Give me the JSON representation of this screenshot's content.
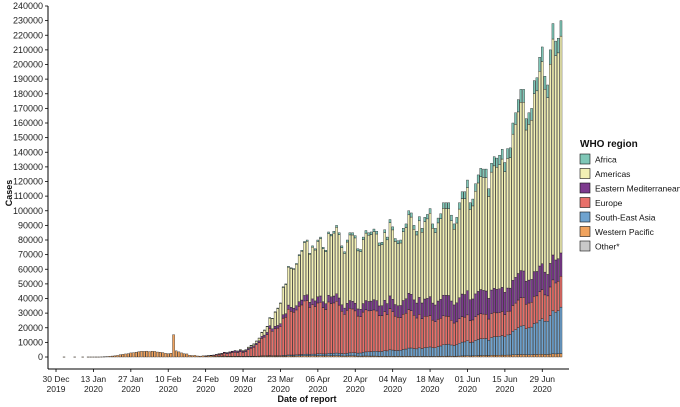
{
  "chart_data": {
    "type": "bar",
    "stacked": true,
    "xlabel": "Date of report",
    "ylabel": "Cases",
    "ylim": [
      0,
      240000
    ],
    "ytick_step": 10000,
    "x_ticks": [
      {
        "day": 0,
        "line1": "30 Dec",
        "line2": "2019"
      },
      {
        "day": 14,
        "line1": "13 Jan",
        "line2": "2020"
      },
      {
        "day": 28,
        "line1": "27 Jan",
        "line2": "2020"
      },
      {
        "day": 42,
        "line1": "10 Feb",
        "line2": "2020"
      },
      {
        "day": 56,
        "line1": "24 Feb",
        "line2": "2020"
      },
      {
        "day": 70,
        "line1": "09 Mar",
        "line2": "2020"
      },
      {
        "day": 84,
        "line1": "23 Mar",
        "line2": "2020"
      },
      {
        "day": 98,
        "line1": "06 Apr",
        "line2": "2020"
      },
      {
        "day": 112,
        "line1": "20 Apr",
        "line2": "2020"
      },
      {
        "day": 126,
        "line1": "04 May",
        "line2": "2020"
      },
      {
        "day": 140,
        "line1": "18 May",
        "line2": "2020"
      },
      {
        "day": 154,
        "line1": "01 Jun",
        "line2": "2020"
      },
      {
        "day": 168,
        "line1": "15 Jun",
        "line2": "2020"
      },
      {
        "day": 182,
        "line1": "29 Jun",
        "line2": "2020"
      }
    ],
    "x_start": "30 Dec 2019",
    "legend": {
      "title": "WHO region",
      "position": "right"
    },
    "series": [
      {
        "name": "Western Pacific",
        "color": "#f0a35e"
      },
      {
        "name": "South-East Asia",
        "color": "#6fa3cf"
      },
      {
        "name": "Europe",
        "color": "#e8706a"
      },
      {
        "name": "Eastern Mediterranean",
        "color": "#7d3a8e"
      },
      {
        "name": "Americas",
        "color": "#f2f0b4"
      },
      {
        "name": "Africa",
        "color": "#7fc7b7"
      },
      {
        "name": "Other*",
        "color": "#c8c8c8"
      }
    ],
    "legend_order": [
      "Africa",
      "Americas",
      "Eastern Mediterranean",
      "Europe",
      "South-East Asia",
      "Western Pacific",
      "Other*"
    ],
    "anchors": {
      "Western Pacific": [
        [
          0,
          0
        ],
        [
          3,
          50
        ],
        [
          14,
          100
        ],
        [
          20,
          300
        ],
        [
          24,
          1500
        ],
        [
          28,
          2000
        ],
        [
          32,
          2900
        ],
        [
          36,
          3700
        ],
        [
          39,
          3900
        ],
        [
          40,
          3400
        ],
        [
          41,
          2200
        ],
        [
          42,
          2000
        ],
        [
          43,
          2500
        ],
        [
          44,
          13000
        ],
        [
          45,
          2900
        ],
        [
          48,
          2200
        ],
        [
          52,
          900
        ],
        [
          56,
          500
        ],
        [
          70,
          400
        ],
        [
          84,
          700
        ],
        [
          98,
          900
        ],
        [
          112,
          700
        ],
        [
          126,
          500
        ],
        [
          140,
          400
        ],
        [
          154,
          800
        ],
        [
          168,
          1400
        ],
        [
          182,
          1700
        ],
        [
          189,
          2200
        ]
      ],
      "South-East Asia": [
        [
          0,
          0
        ],
        [
          60,
          0
        ],
        [
          70,
          50
        ],
        [
          84,
          500
        ],
        [
          98,
          1200
        ],
        [
          112,
          2000
        ],
        [
          126,
          4000
        ],
        [
          140,
          6000
        ],
        [
          154,
          10000
        ],
        [
          168,
          14000
        ],
        [
          182,
          22000
        ],
        [
          189,
          30000
        ]
      ],
      "Europe": [
        [
          0,
          0
        ],
        [
          55,
          0
        ],
        [
          58,
          200
        ],
        [
          62,
          900
        ],
        [
          66,
          2000
        ],
        [
          70,
          3000
        ],
        [
          74,
          8000
        ],
        [
          78,
          14000
        ],
        [
          82,
          22000
        ],
        [
          86,
          30000
        ],
        [
          90,
          33000
        ],
        [
          94,
          34000
        ],
        [
          98,
          33000
        ],
        [
          104,
          32000
        ],
        [
          112,
          27000
        ],
        [
          120,
          26000
        ],
        [
          126,
          25000
        ],
        [
          140,
          20000
        ],
        [
          154,
          17000
        ],
        [
          168,
          17000
        ],
        [
          182,
          18000
        ],
        [
          189,
          20000
        ]
      ],
      "Eastern Mediterranean": [
        [
          0,
          0
        ],
        [
          55,
          0
        ],
        [
          58,
          50
        ],
        [
          62,
          400
        ],
        [
          66,
          700
        ],
        [
          70,
          1000
        ],
        [
          78,
          1500
        ],
        [
          84,
          2500
        ],
        [
          98,
          4000
        ],
        [
          112,
          5000
        ],
        [
          126,
          8000
        ],
        [
          140,
          12000
        ],
        [
          154,
          16000
        ],
        [
          168,
          17000
        ],
        [
          182,
          16000
        ],
        [
          189,
          15000
        ]
      ],
      "Americas": [
        [
          0,
          0
        ],
        [
          60,
          0
        ],
        [
          66,
          50
        ],
        [
          70,
          500
        ],
        [
          76,
          2000
        ],
        [
          80,
          5000
        ],
        [
          84,
          18000
        ],
        [
          88,
          28000
        ],
        [
          92,
          33000
        ],
        [
          98,
          36000
        ],
        [
          104,
          40000
        ],
        [
          112,
          42000
        ],
        [
          120,
          43000
        ],
        [
          126,
          45000
        ],
        [
          134,
          47000
        ],
        [
          140,
          53000
        ],
        [
          147,
          58000
        ],
        [
          154,
          68000
        ],
        [
          161,
          80000
        ],
        [
          168,
          92000
        ],
        [
          175,
          105000
        ],
        [
          182,
          125000
        ],
        [
          189,
          140000
        ]
      ],
      "Africa": [
        [
          0,
          0
        ],
        [
          70,
          0
        ],
        [
          72,
          100
        ],
        [
          80,
          400
        ],
        [
          90,
          600
        ],
        [
          100,
          1000
        ],
        [
          112,
          1500
        ],
        [
          126,
          2000
        ],
        [
          140,
          3000
        ],
        [
          154,
          5000
        ],
        [
          168,
          7000
        ],
        [
          182,
          9000
        ],
        [
          189,
          10000
        ]
      ],
      "Other*": [
        [
          0,
          0
        ],
        [
          189,
          0
        ]
      ]
    },
    "daily_totals": [
      [
        0,
        0
      ],
      [
        3,
        60
      ],
      [
        4,
        0
      ],
      [
        7,
        60
      ],
      [
        8,
        0
      ],
      [
        9,
        0
      ],
      [
        10,
        60
      ],
      [
        12,
        60
      ],
      [
        13,
        60
      ],
      [
        14,
        60
      ],
      [
        15,
        60
      ],
      [
        16,
        60
      ],
      [
        17,
        100
      ],
      [
        18,
        150
      ],
      [
        19,
        300
      ],
      [
        20,
        450
      ],
      [
        21,
        650
      ],
      [
        22,
        800
      ],
      [
        23,
        1100
      ],
      [
        24,
        1500
      ],
      [
        25,
        1800
      ],
      [
        26,
        2100
      ],
      [
        27,
        2300
      ],
      [
        28,
        2800
      ],
      [
        29,
        3000
      ],
      [
        30,
        3300
      ],
      [
        31,
        3600
      ],
      [
        32,
        3900
      ],
      [
        33,
        3800
      ],
      [
        34,
        4000
      ],
      [
        35,
        3700
      ],
      [
        36,
        3900
      ],
      [
        37,
        3800
      ],
      [
        38,
        3400
      ],
      [
        39,
        3300
      ],
      [
        40,
        3000
      ],
      [
        41,
        2500
      ],
      [
        42,
        2200
      ],
      [
        43,
        2600
      ],
      [
        44,
        15200
      ],
      [
        45,
        4200
      ],
      [
        46,
        3500
      ],
      [
        47,
        2800
      ],
      [
        48,
        2200
      ],
      [
        49,
        2100
      ],
      [
        50,
        1200
      ],
      [
        51,
        1000
      ],
      [
        52,
        1100
      ],
      [
        53,
        700
      ],
      [
        54,
        600
      ],
      [
        55,
        800
      ],
      [
        56,
        800
      ],
      [
        57,
        1000
      ],
      [
        58,
        1200
      ],
      [
        59,
        1400
      ],
      [
        60,
        1800
      ],
      [
        61,
        2200
      ],
      [
        62,
        2500
      ],
      [
        63,
        3300
      ],
      [
        64,
        3000
      ],
      [
        65,
        3500
      ],
      [
        66,
        4000
      ],
      [
        67,
        4400
      ],
      [
        68,
        4200
      ],
      [
        69,
        5200
      ],
      [
        70,
        4500
      ],
      [
        71,
        5000
      ],
      [
        72,
        6800
      ],
      [
        73,
        8000
      ],
      [
        74,
        9000
      ],
      [
        75,
        11000
      ],
      [
        76,
        13000
      ],
      [
        77,
        17000
      ],
      [
        78,
        18500
      ],
      [
        79,
        21000
      ],
      [
        80,
        27000
      ],
      [
        81,
        26500
      ],
      [
        82,
        31000
      ],
      [
        83,
        33500
      ],
      [
        84,
        37000
      ],
      [
        85,
        48000
      ],
      [
        86,
        50000
      ],
      [
        87,
        62000
      ],
      [
        88,
        61000
      ],
      [
        89,
        60500
      ],
      [
        90,
        64000
      ],
      [
        91,
        70000
      ],
      [
        92,
        73000
      ],
      [
        93,
        79000
      ],
      [
        94,
        80000
      ],
      [
        95,
        71000
      ],
      [
        96,
        76000
      ],
      [
        97,
        74000
      ],
      [
        98,
        80000
      ],
      [
        99,
        82000
      ],
      [
        100,
        75000
      ],
      [
        101,
        73000
      ],
      [
        102,
        85500
      ],
      [
        103,
        84000
      ],
      [
        104,
        86000
      ],
      [
        105,
        90000
      ],
      [
        106,
        85000
      ],
      [
        107,
        76000
      ],
      [
        108,
        72000
      ],
      [
        109,
        80000
      ],
      [
        110,
        85000
      ],
      [
        111,
        85000
      ],
      [
        112,
        83000
      ],
      [
        113,
        74000
      ],
      [
        114,
        73500
      ],
      [
        115,
        82000
      ],
      [
        116,
        86500
      ],
      [
        117,
        85000
      ],
      [
        118,
        85500
      ],
      [
        119,
        87500
      ],
      [
        120,
        86000
      ],
      [
        121,
        78000
      ],
      [
        122,
        78500
      ],
      [
        123,
        87000
      ],
      [
        124,
        82000
      ],
      [
        125,
        94000
      ],
      [
        126,
        89000
      ],
      [
        127,
        81000
      ],
      [
        128,
        79500
      ],
      [
        129,
        80000
      ],
      [
        130,
        88000
      ],
      [
        131,
        91000
      ],
      [
        132,
        100000
      ],
      [
        133,
        98500
      ],
      [
        134,
        90000
      ],
      [
        135,
        86000
      ],
      [
        136,
        96000
      ],
      [
        137,
        88000
      ],
      [
        138,
        95500
      ],
      [
        139,
        97500
      ],
      [
        140,
        101500
      ],
      [
        141,
        91000
      ],
      [
        142,
        88000
      ],
      [
        143,
        95000
      ],
      [
        144,
        98000
      ],
      [
        145,
        105500
      ],
      [
        146,
        105500
      ],
      [
        147,
        105500
      ],
      [
        148,
        97000
      ],
      [
        149,
        91000
      ],
      [
        150,
        95500
      ],
      [
        151,
        105500
      ],
      [
        152,
        113000
      ],
      [
        153,
        113000
      ],
      [
        154,
        121000
      ],
      [
        155,
        105500
      ],
      [
        156,
        108000
      ],
      [
        157,
        118500
      ],
      [
        158,
        124500
      ],
      [
        159,
        129000
      ],
      [
        160,
        128500
      ],
      [
        161,
        128500
      ],
      [
        162,
        115000
      ],
      [
        163,
        132500
      ],
      [
        164,
        137000
      ],
      [
        165,
        136000
      ],
      [
        166,
        138000
      ],
      [
        167,
        142000
      ],
      [
        168,
        133000
      ],
      [
        169,
        142500
      ],
      [
        170,
        143000
      ],
      [
        171,
        160000
      ],
      [
        172,
        167000
      ],
      [
        173,
        176000
      ],
      [
        174,
        183000
      ],
      [
        175,
        183000
      ],
      [
        176,
        163000
      ],
      [
        177,
        167000
      ],
      [
        178,
        170000
      ],
      [
        179,
        189000
      ],
      [
        180,
        191000
      ],
      [
        181,
        205000
      ],
      [
        182,
        212000
      ],
      [
        183,
        192000
      ],
      [
        184,
        186000
      ],
      [
        185,
        210000
      ],
      [
        186,
        228000
      ],
      [
        187,
        216000
      ],
      [
        188,
        218000
      ],
      [
        189,
        230000
      ]
    ]
  }
}
